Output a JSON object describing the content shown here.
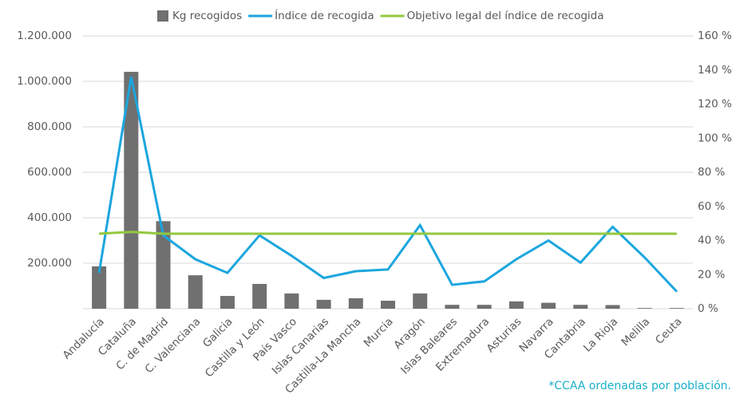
{
  "chart_data": {
    "type": "bar-line",
    "categories": [
      "Andalucía",
      "Cataluña",
      "C. de Madrid",
      "C. Valenciana",
      "Galicia",
      "Castilla y León",
      "País Vasco",
      "Islas Canarias",
      "Castilla-La Mancha",
      "Murcia",
      "Aragón",
      "Islas Baleares",
      "Extremadura",
      "Asturias",
      "Navarra",
      "Cantabria",
      "La Rioja",
      "Melilla",
      "Ceuta"
    ],
    "series": [
      {
        "name": "Kg recogidos",
        "type": "bar",
        "color": "#707070",
        "values": [
          186000,
          1042000,
          385000,
          147000,
          56000,
          109000,
          67000,
          39000,
          46000,
          35000,
          67000,
          17000,
          17000,
          32000,
          26000,
          17000,
          16000,
          3000,
          3000
        ]
      },
      {
        "name": "Índice de recogida",
        "type": "line",
        "axis": "y2",
        "color": "#1ba6de",
        "values": [
          21,
          136,
          43,
          29,
          21,
          43,
          31,
          18,
          22,
          23,
          49,
          14,
          16,
          29,
          40,
          27,
          48,
          30,
          10
        ]
      },
      {
        "name": "Objetivo legal del índice de recogida",
        "type": "line",
        "axis": "y2",
        "color": "#93c83e",
        "values": [
          44,
          45,
          44,
          44,
          44,
          44,
          44,
          44,
          44,
          44,
          44,
          44,
          44,
          44,
          44,
          44,
          44,
          44,
          44
        ]
      }
    ],
    "ylim": [
      0,
      1200000
    ],
    "yticks": [
      {
        "value": 200000,
        "label": "200.000"
      },
      {
        "value": 400000,
        "label": "400.000"
      },
      {
        "value": 600000,
        "label": "600.000"
      },
      {
        "value": 800000,
        "label": "800.000"
      },
      {
        "value": 1000000,
        "label": "1.000.000"
      },
      {
        "value": 1200000,
        "label": "1.200.000"
      }
    ],
    "y2lim": [
      0,
      160
    ],
    "y2ticks": [
      {
        "value": 0,
        "label": "0 %"
      },
      {
        "value": 20,
        "label": "20 %"
      },
      {
        "value": 40,
        "label": "40 %"
      },
      {
        "value": 60,
        "label": "60 %"
      },
      {
        "value": 80,
        "label": "80 %"
      },
      {
        "value": 100,
        "label": "100 %"
      },
      {
        "value": 120,
        "label": "120 %"
      },
      {
        "value": 140,
        "label": "140 %"
      },
      {
        "value": 160,
        "label": "160 %"
      }
    ],
    "grid": true,
    "annotation": "*CCAA ordenadas por población."
  }
}
